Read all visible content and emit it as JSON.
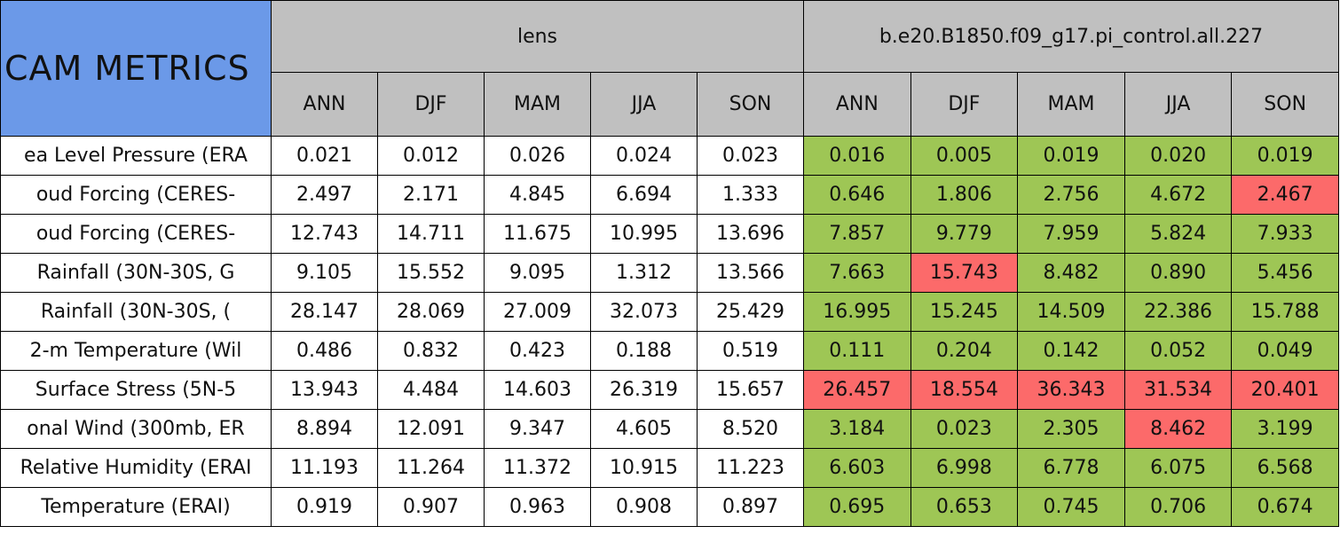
{
  "table": {
    "corner": "CAM METRICS",
    "groups": [
      "lens",
      "b.e20.B1850.f09_g17.pi_control.all.227"
    ],
    "seasons": [
      "ANN",
      "DJF",
      "MAM",
      "JJA",
      "SON"
    ],
    "colors": {
      "neutral": "#ffffff",
      "good": "#9ec655",
      "bad": "#fc6a6a",
      "header": "#c0c0c0",
      "corner": "#6b99e8"
    },
    "rows": [
      {
        "label": "ea Level Pressure (ERA",
        "lens": [
          "0.021",
          "0.012",
          "0.026",
          "0.024",
          "0.023"
        ],
        "control": [
          "0.016",
          "0.005",
          "0.019",
          "0.020",
          "0.019"
        ],
        "status": [
          "good",
          "good",
          "good",
          "good",
          "good"
        ]
      },
      {
        "label": "oud Forcing (CERES-",
        "lens": [
          "2.497",
          "2.171",
          "4.845",
          "6.694",
          "1.333"
        ],
        "control": [
          "0.646",
          "1.806",
          "2.756",
          "4.672",
          "2.467"
        ],
        "status": [
          "good",
          "good",
          "good",
          "good",
          "bad"
        ]
      },
      {
        "label": "oud Forcing (CERES-",
        "lens": [
          "12.743",
          "14.711",
          "11.675",
          "10.995",
          "13.696"
        ],
        "control": [
          "7.857",
          "9.779",
          "7.959",
          "5.824",
          "7.933"
        ],
        "status": [
          "good",
          "good",
          "good",
          "good",
          "good"
        ]
      },
      {
        "label": "Rainfall (30N-30S, G",
        "lens": [
          "9.105",
          "15.552",
          "9.095",
          "1.312",
          "13.566"
        ],
        "control": [
          "7.663",
          "15.743",
          "8.482",
          "0.890",
          "5.456"
        ],
        "status": [
          "good",
          "bad",
          "good",
          "good",
          "good"
        ]
      },
      {
        "label": "Rainfall (30N-30S, (",
        "lens": [
          "28.147",
          "28.069",
          "27.009",
          "32.073",
          "25.429"
        ],
        "control": [
          "16.995",
          "15.245",
          "14.509",
          "22.386",
          "15.788"
        ],
        "status": [
          "good",
          "good",
          "good",
          "good",
          "good"
        ]
      },
      {
        "label": "2-m Temperature (Wil",
        "lens": [
          "0.486",
          "0.832",
          "0.423",
          "0.188",
          "0.519"
        ],
        "control": [
          "0.111",
          "0.204",
          "0.142",
          "0.052",
          "0.049"
        ],
        "status": [
          "good",
          "good",
          "good",
          "good",
          "good"
        ]
      },
      {
        "label": "Surface Stress (5N-5",
        "lens": [
          "13.943",
          "4.484",
          "14.603",
          "26.319",
          "15.657"
        ],
        "control": [
          "26.457",
          "18.554",
          "36.343",
          "31.534",
          "20.401"
        ],
        "status": [
          "bad",
          "bad",
          "bad",
          "bad",
          "bad"
        ]
      },
      {
        "label": "onal Wind (300mb, ER",
        "lens": [
          "8.894",
          "12.091",
          "9.347",
          "4.605",
          "8.520"
        ],
        "control": [
          "3.184",
          "0.023",
          "2.305",
          "8.462",
          "3.199"
        ],
        "status": [
          "good",
          "good",
          "good",
          "bad",
          "good"
        ]
      },
      {
        "label": "Relative Humidity (ERAI",
        "lens": [
          "11.193",
          "11.264",
          "11.372",
          "10.915",
          "11.223"
        ],
        "control": [
          "6.603",
          "6.998",
          "6.778",
          "6.075",
          "6.568"
        ],
        "status": [
          "good",
          "good",
          "good",
          "good",
          "good"
        ]
      },
      {
        "label": "Temperature (ERAI)",
        "lens": [
          "0.919",
          "0.907",
          "0.963",
          "0.908",
          "0.897"
        ],
        "control": [
          "0.695",
          "0.653",
          "0.745",
          "0.706",
          "0.674"
        ],
        "status": [
          "good",
          "good",
          "good",
          "good",
          "good"
        ]
      }
    ]
  }
}
